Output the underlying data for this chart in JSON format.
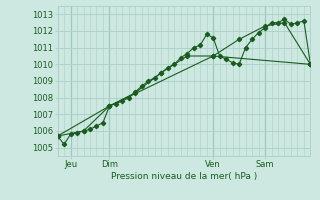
{
  "background_color": "#cce8e0",
  "grid_color": "#aacec6",
  "line_color": "#1a5c20",
  "title": "Pression niveau de la mer( hPa )",
  "x_ticks_labels": [
    "Jeu",
    "Dim",
    "Ven",
    "Sam"
  ],
  "ylim": [
    1004.5,
    1013.5
  ],
  "yticks": [
    1005,
    1006,
    1007,
    1008,
    1009,
    1010,
    1011,
    1012,
    1013
  ],
  "series1_x": [
    0,
    1,
    2,
    3,
    4,
    5,
    6,
    7,
    8,
    9,
    10,
    11,
    12,
    13,
    14,
    15,
    16,
    17,
    18,
    19,
    20,
    21,
    22,
    23,
    24,
    25,
    26,
    27,
    28,
    29,
    30,
    31,
    32,
    33,
    34,
    35,
    36,
    37,
    38,
    39
  ],
  "series1_y": [
    1005.7,
    1005.2,
    1005.8,
    1005.9,
    1006.0,
    1006.1,
    1006.3,
    1006.5,
    1007.5,
    1007.65,
    1007.8,
    1008.0,
    1008.35,
    1008.7,
    1009.0,
    1009.2,
    1009.5,
    1009.8,
    1010.0,
    1010.4,
    1010.65,
    1011.0,
    1011.15,
    1011.8,
    1011.6,
    1010.5,
    1010.3,
    1010.1,
    1010.0,
    1011.0,
    1011.5,
    1011.9,
    1012.2,
    1012.5,
    1012.5,
    1012.7,
    1012.4,
    1012.5,
    1012.6,
    1010.0
  ],
  "series2_x": [
    0,
    4,
    8,
    12,
    16,
    20,
    24,
    28,
    32,
    35,
    39
  ],
  "series2_y": [
    1005.7,
    1006.0,
    1007.5,
    1008.3,
    1009.5,
    1010.5,
    1010.5,
    1011.5,
    1012.3,
    1012.5,
    1010.0
  ],
  "series3_x": [
    0,
    8,
    24,
    39
  ],
  "series3_y": [
    1005.7,
    1007.5,
    1010.5,
    1010.0
  ],
  "xlim": [
    0,
    39
  ],
  "x_tick_positions": [
    2,
    8,
    24,
    32
  ]
}
